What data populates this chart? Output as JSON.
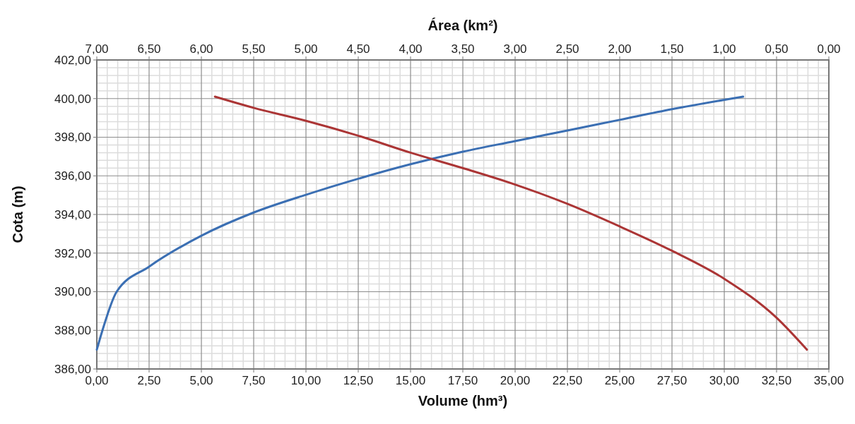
{
  "chart_data": {
    "type": "line",
    "xlabel": "Volume (hm³)",
    "x2label": "Área (km²)",
    "ylabel": "Cota (m)",
    "xlim": [
      0,
      35
    ],
    "xticks": [
      {
        "value": 0,
        "label": "0,00"
      },
      {
        "value": 2.5,
        "label": "2,50"
      },
      {
        "value": 5,
        "label": "5,00"
      },
      {
        "value": 7.5,
        "label": "7,50"
      },
      {
        "value": 10,
        "label": "10,00"
      },
      {
        "value": 12.5,
        "label": "12,50"
      },
      {
        "value": 15,
        "label": "15,00"
      },
      {
        "value": 17.5,
        "label": "17,50"
      },
      {
        "value": 20,
        "label": "20,00"
      },
      {
        "value": 22.5,
        "label": "22,50"
      },
      {
        "value": 25,
        "label": "25,00"
      },
      {
        "value": 27.5,
        "label": "27,50"
      },
      {
        "value": 30,
        "label": "30,00"
      },
      {
        "value": 32.5,
        "label": "32,50"
      },
      {
        "value": 35,
        "label": "35,00"
      }
    ],
    "x2lim": [
      7,
      0
    ],
    "x2ticks": [
      {
        "value": 7,
        "label": "7,00"
      },
      {
        "value": 6.5,
        "label": "6,50"
      },
      {
        "value": 6,
        "label": "6,00"
      },
      {
        "value": 5.5,
        "label": "5,50"
      },
      {
        "value": 5,
        "label": "5,00"
      },
      {
        "value": 4.5,
        "label": "4,50"
      },
      {
        "value": 4,
        "label": "4,00"
      },
      {
        "value": 3.5,
        "label": "3,50"
      },
      {
        "value": 3,
        "label": "3,00"
      },
      {
        "value": 2.5,
        "label": "2,50"
      },
      {
        "value": 2,
        "label": "2,00"
      },
      {
        "value": 1.5,
        "label": "1,50"
      },
      {
        "value": 1,
        "label": "1,00"
      },
      {
        "value": 0.5,
        "label": "0,50"
      },
      {
        "value": 0,
        "label": "0,00"
      }
    ],
    "ylim": [
      386,
      402
    ],
    "yticks": [
      {
        "value": 386,
        "label": "386,00"
      },
      {
        "value": 388,
        "label": "388,00"
      },
      {
        "value": 390,
        "label": "390,00"
      },
      {
        "value": 392,
        "label": "392,00"
      },
      {
        "value": 394,
        "label": "394,00"
      },
      {
        "value": 396,
        "label": "396,00"
      },
      {
        "value": 398,
        "label": "398,00"
      },
      {
        "value": 400,
        "label": "400,00"
      },
      {
        "value": 402,
        "label": "402,00"
      }
    ],
    "grid": true,
    "line_style": "solid",
    "marker": "none",
    "series": [
      {
        "color": "#3b6fb3",
        "x": [
          0,
          0.27,
          0.95,
          2.5,
          5,
          7.5,
          10,
          12.5,
          15,
          17.5,
          20,
          22.5,
          25,
          27.5,
          30.9
        ],
        "values": [
          387,
          388,
          390,
          391.3,
          392.9,
          394.1,
          395.02,
          395.85,
          396.6,
          397.25,
          397.8,
          398.35,
          398.9,
          399.45,
          400.1
        ]
      },
      {
        "color": "#ab3535",
        "axis": "x2",
        "x": [
          5.87,
          5.5,
          5,
          4.5,
          4,
          3.5,
          3,
          2.5,
          2,
          1.5,
          1,
          0.5,
          0.21
        ],
        "values": [
          400.1,
          399.52,
          398.85,
          398.08,
          397.2,
          396.4,
          395.55,
          394.55,
          393.38,
          392.12,
          390.67,
          388.65,
          387
        ]
      }
    ]
  }
}
